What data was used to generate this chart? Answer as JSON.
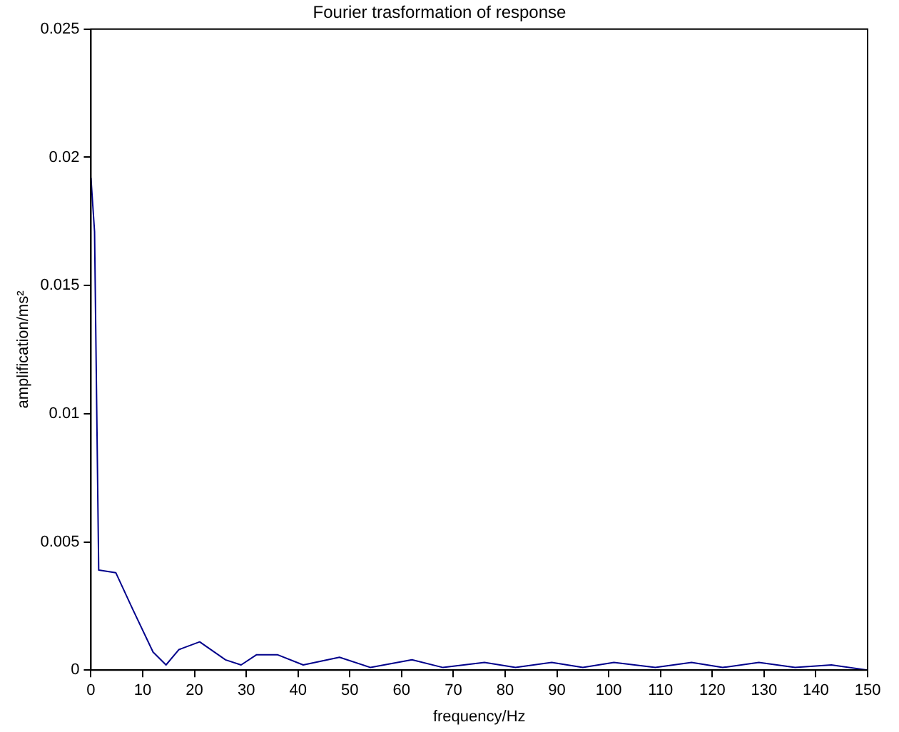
{
  "chart_data": {
    "type": "line",
    "title": "Fourier trasformation of response",
    "xlabel": "frequency/Hz",
    "ylabel": "amplification/ms²",
    "x": [
      0,
      0.7,
      1.5,
      4.8,
      8,
      12,
      14.5,
      17,
      21,
      26,
      29,
      32,
      36,
      41,
      48,
      54,
      62,
      68,
      76,
      82,
      89,
      95,
      101,
      109,
      116,
      122,
      129,
      136,
      143,
      150
    ],
    "series": [
      {
        "color": "#00008b",
        "values": [
          0.0192,
          0.0171,
          0.0039,
          0.0038,
          0.0024,
          0.0007,
          0.0002,
          0.0008,
          0.0011,
          0.0004,
          0.0002,
          0.0006,
          0.0006,
          0.0002,
          0.0005,
          0.0001,
          0.0004,
          0.0001,
          0.0003,
          0.0001,
          0.0003,
          0.0001,
          0.0003,
          0.0001,
          0.0003,
          0.0001,
          0.0003,
          0.0001,
          0.0002,
          0
        ]
      }
    ],
    "xlim": [
      0,
      150
    ],
    "xticks": [
      0,
      10,
      20,
      30,
      40,
      50,
      60,
      70,
      80,
      90,
      100,
      110,
      120,
      130,
      140,
      150
    ],
    "ylim": [
      0,
      0.025
    ],
    "yticks": [
      0,
      0.005,
      0.01,
      0.015,
      0.02,
      0.025
    ],
    "grid": false,
    "legend": false,
    "marker": "none",
    "line_style": "solid"
  }
}
